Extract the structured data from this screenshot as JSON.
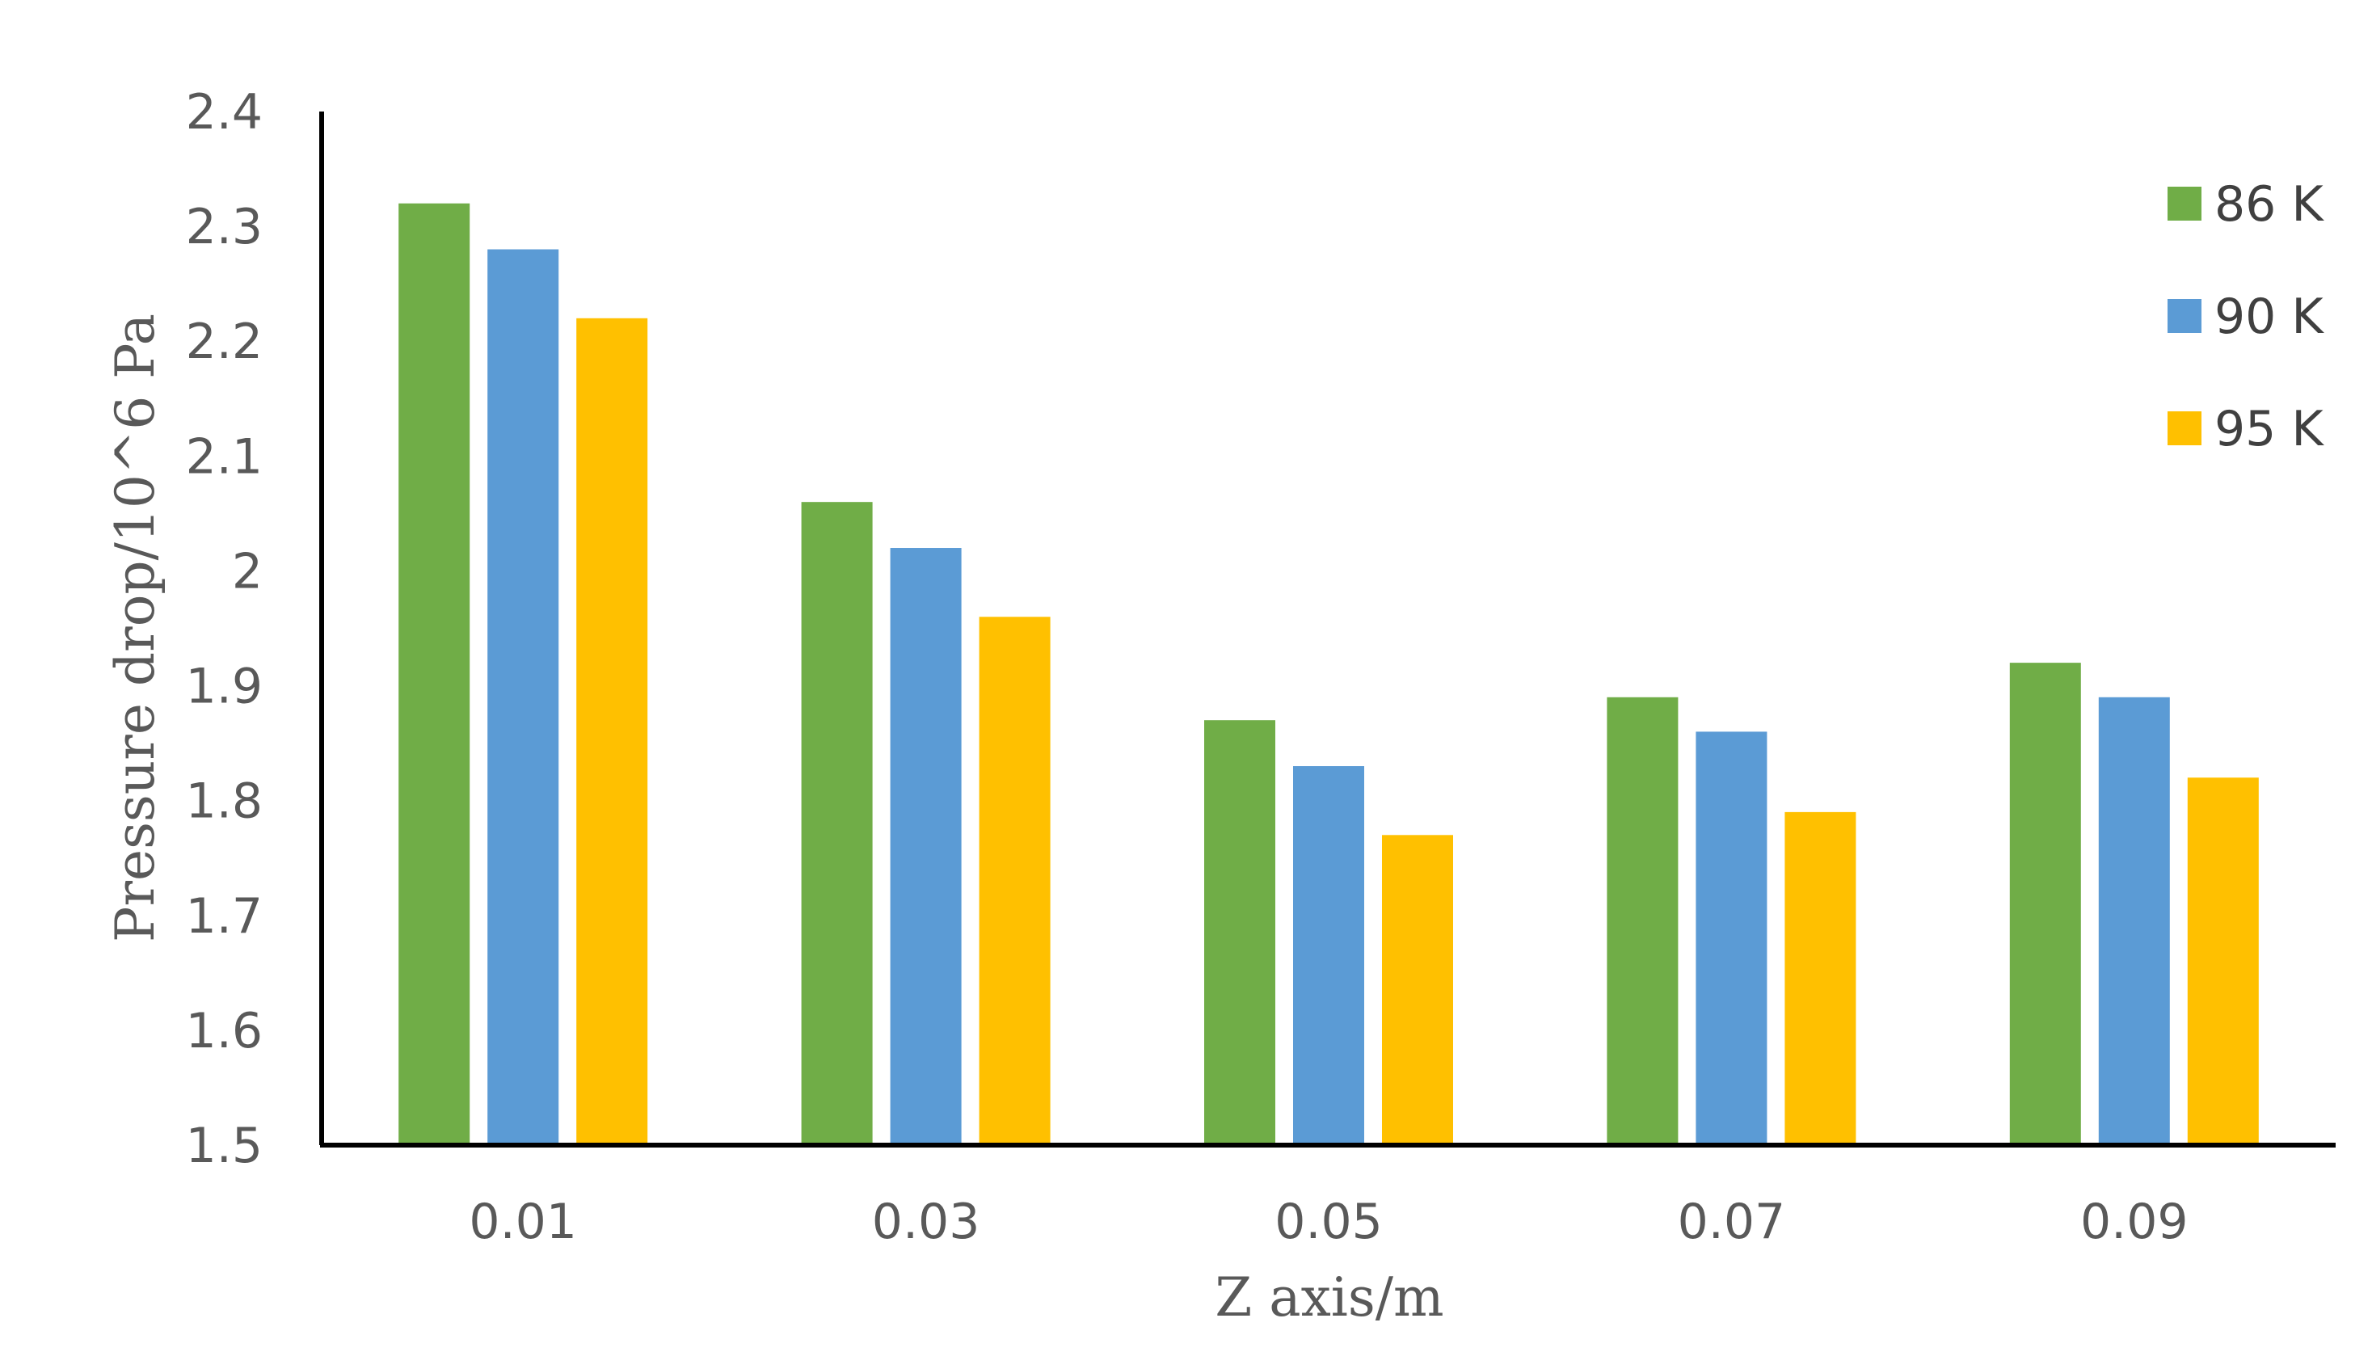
{
  "chart_data": {
    "type": "bar",
    "categories": [
      "0.01",
      "0.03",
      "0.05",
      "0.07",
      "0.09"
    ],
    "series": [
      {
        "name": "86 K",
        "color": "#70AD47",
        "values": [
          2.32,
          2.06,
          1.87,
          1.89,
          1.92
        ]
      },
      {
        "name": "90 K",
        "color": "#5B9BD5",
        "values": [
          2.28,
          2.02,
          1.83,
          1.86,
          1.89
        ]
      },
      {
        "name": "95 K",
        "color": "#FFC000",
        "values": [
          2.22,
          1.96,
          1.77,
          1.79,
          1.82
        ]
      }
    ],
    "title": "",
    "xlabel": "Z axis/m",
    "ylabel": "Pressure drop/10^6 Pa",
    "ylim": [
      1.5,
      2.4
    ],
    "yticks": [
      "1.5",
      "1.6",
      "1.7",
      "1.8",
      "1.9",
      "2",
      "2.1",
      "2.2",
      "2.3",
      "2.4"
    ],
    "grid": false,
    "legend_position": "right"
  }
}
